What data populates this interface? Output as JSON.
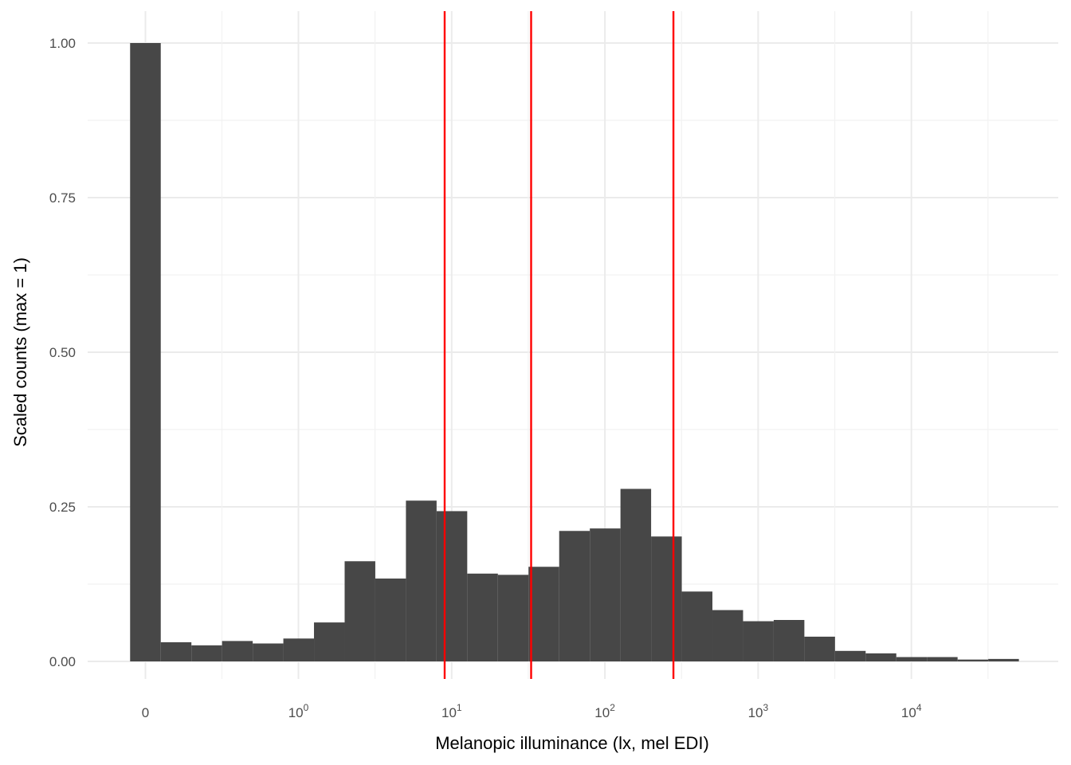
{
  "chart_data": {
    "type": "bar",
    "xlabel": "Melanopic illuminance (lx, mel EDI)",
    "ylabel": "Scaled counts (max = 1)",
    "x_scale": "pseudo-log (symlog); first bin centered at 0",
    "ylim": [
      0,
      1.05
    ],
    "y_ticks": [
      {
        "value": 0.0,
        "label": "0.00"
      },
      {
        "value": 0.25,
        "label": "0.25"
      },
      {
        "value": 0.5,
        "label": "0.50"
      },
      {
        "value": 0.75,
        "label": "0.75"
      },
      {
        "value": 1.0,
        "label": "1.00"
      }
    ],
    "x_ticks": [
      {
        "value": 0,
        "base": "0",
        "exp": ""
      },
      {
        "value": 1,
        "base": "10",
        "exp": "0"
      },
      {
        "value": 10,
        "base": "10",
        "exp": "1"
      },
      {
        "value": 100,
        "base": "10",
        "exp": "2"
      },
      {
        "value": 1000,
        "base": "10",
        "exp": "3"
      },
      {
        "value": 10000,
        "base": "10",
        "exp": "4"
      }
    ],
    "bins_log10_lx": {
      "first_center_offset": -0.1,
      "width": 0.2,
      "values": [
        1.0,
        0.031,
        0.026,
        0.033,
        0.029,
        0.037,
        0.063,
        0.162,
        0.134,
        0.26,
        0.243,
        0.142,
        0.14,
        0.153,
        0.211,
        0.215,
        0.279,
        0.202,
        0.113,
        0.083,
        0.065,
        0.067,
        0.04,
        0.017,
        0.013,
        0.007,
        0.007,
        0.003,
        0.004
      ]
    },
    "vlines_lx": [
      9,
      33,
      280
    ],
    "bar_color": "#474747",
    "vline_color": "#ff0000",
    "grid": true
  }
}
